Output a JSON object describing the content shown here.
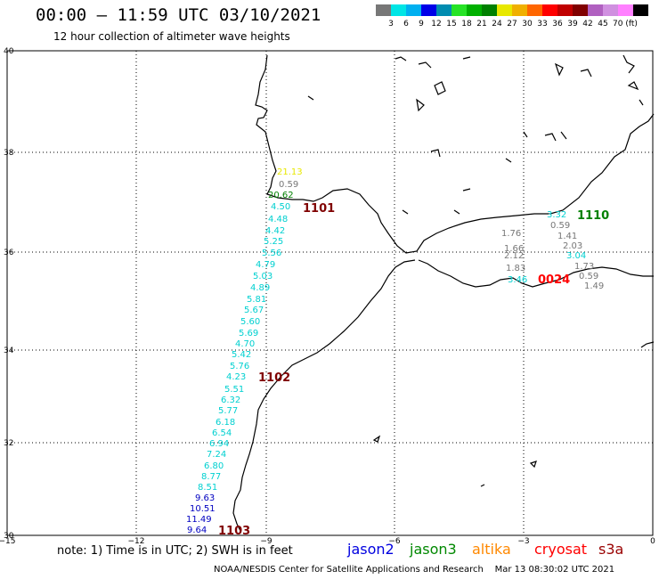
{
  "header": {
    "title": "00:00 – 11:59 UTC 03/10/2021",
    "subtitle": "12 hour collection of altimeter wave heights"
  },
  "legend": {
    "colors": [
      "#777777",
      "#00e5e5",
      "#00b0f0",
      "#0000e8",
      "#008cb0",
      "#26e326",
      "#00b000",
      "#008000",
      "#e8e800",
      "#f0b000",
      "#ff6600",
      "#ff0000",
      "#c00000",
      "#800000",
      "#b060c0",
      "#d090e0",
      "#ff80ff",
      "#000000"
    ],
    "labels": [
      "3",
      "6",
      "9",
      "12",
      "15",
      "18",
      "21",
      "24",
      "27",
      "30",
      "33",
      "36",
      "39",
      "42",
      "45",
      "70 (ft)"
    ]
  },
  "axes": {
    "lat_labels": [
      "40",
      "38",
      "36",
      "34",
      "32",
      "30"
    ],
    "lon_labels": [
      "−15",
      "−12",
      "−9",
      "−6",
      "−3",
      "0"
    ]
  },
  "passes": [
    {
      "id": "1101",
      "color": "#800000"
    },
    {
      "id": "1102",
      "color": "#800000"
    },
    {
      "id": "1103",
      "color": "#800000"
    },
    {
      "id": "1110",
      "color": "#008000"
    },
    {
      "id": "0024",
      "color": "#ff0000"
    }
  ],
  "wave_labels": [
    {
      "text": "21.13",
      "color": "#e8e800"
    },
    {
      "text": "0.59",
      "color": "#777777"
    },
    {
      "text": "20.62",
      "color": "#008000"
    },
    {
      "text": "4.50",
      "color": "#00d0d0"
    },
    {
      "text": "4.48",
      "color": "#00d0d0"
    },
    {
      "text": "4.42",
      "color": "#00d0d0"
    },
    {
      "text": "5.25",
      "color": "#00d0d0"
    },
    {
      "text": "5.56",
      "color": "#00d0d0"
    },
    {
      "text": "4.79",
      "color": "#00d0d0"
    },
    {
      "text": "5.03",
      "color": "#00d0d0"
    },
    {
      "text": "4.89",
      "color": "#00d0d0"
    },
    {
      "text": "5.81",
      "color": "#00d0d0"
    },
    {
      "text": "5.67",
      "color": "#00d0d0"
    },
    {
      "text": "5.60",
      "color": "#00d0d0"
    },
    {
      "text": "5.69",
      "color": "#00d0d0"
    },
    {
      "text": "4.70",
      "color": "#00d0d0"
    },
    {
      "text": "5.42",
      "color": "#00d0d0"
    },
    {
      "text": "5.76",
      "color": "#00d0d0"
    },
    {
      "text": "4.23",
      "color": "#00d0d0"
    },
    {
      "text": "5.51",
      "color": "#00d0d0"
    },
    {
      "text": "6.32",
      "color": "#00d0d0"
    },
    {
      "text": "5.77",
      "color": "#00d0d0"
    },
    {
      "text": "6.18",
      "color": "#00d0d0"
    },
    {
      "text": "6.54",
      "color": "#00d0d0"
    },
    {
      "text": "6.94",
      "color": "#00d0d0"
    },
    {
      "text": "7.24",
      "color": "#00d0d0"
    },
    {
      "text": "6.80",
      "color": "#00d0d0"
    },
    {
      "text": "8.77",
      "color": "#00d0d0"
    },
    {
      "text": "8.51",
      "color": "#00d0d0"
    },
    {
      "text": "9.63",
      "color": "#0000c0"
    },
    {
      "text": "10.51",
      "color": "#0000c0"
    },
    {
      "text": "11.49",
      "color": "#0000c0"
    },
    {
      "text": "9.64",
      "color": "#0000c0"
    },
    {
      "text": "1.76",
      "color": "#777777"
    },
    {
      "text": "1.66",
      "color": "#777777"
    },
    {
      "text": "2.12",
      "color": "#777777"
    },
    {
      "text": "1.83",
      "color": "#777777"
    },
    {
      "text": "3.46",
      "color": "#00d0d0"
    },
    {
      "text": "3.32",
      "color": "#00d0d0"
    },
    {
      "text": "0.59",
      "color": "#777777"
    },
    {
      "text": "1.41",
      "color": "#777777"
    },
    {
      "text": "2.03",
      "color": "#777777"
    },
    {
      "text": "3.04",
      "color": "#00d0d0"
    },
    {
      "text": "1.73",
      "color": "#777777"
    },
    {
      "text": "0.59",
      "color": "#777777"
    },
    {
      "text": "1.49",
      "color": "#777777"
    }
  ],
  "footer": {
    "note": "note: 1) Time is in UTC; 2) SWH is in feet",
    "missions": [
      {
        "name": "jason2",
        "color": "#0000e0"
      },
      {
        "name": "jason3",
        "color": "#008800"
      },
      {
        "name": "altika",
        "color": "#ff8800"
      },
      {
        "name": "cryosat",
        "color": "#ff0000"
      },
      {
        "name": "s3a",
        "color": "#990000"
      }
    ],
    "credit": "NOAA/NESDIS Center for Satellite Applications and Research",
    "timestamp": "Mar 13 08:30:02 UTC 2021"
  }
}
